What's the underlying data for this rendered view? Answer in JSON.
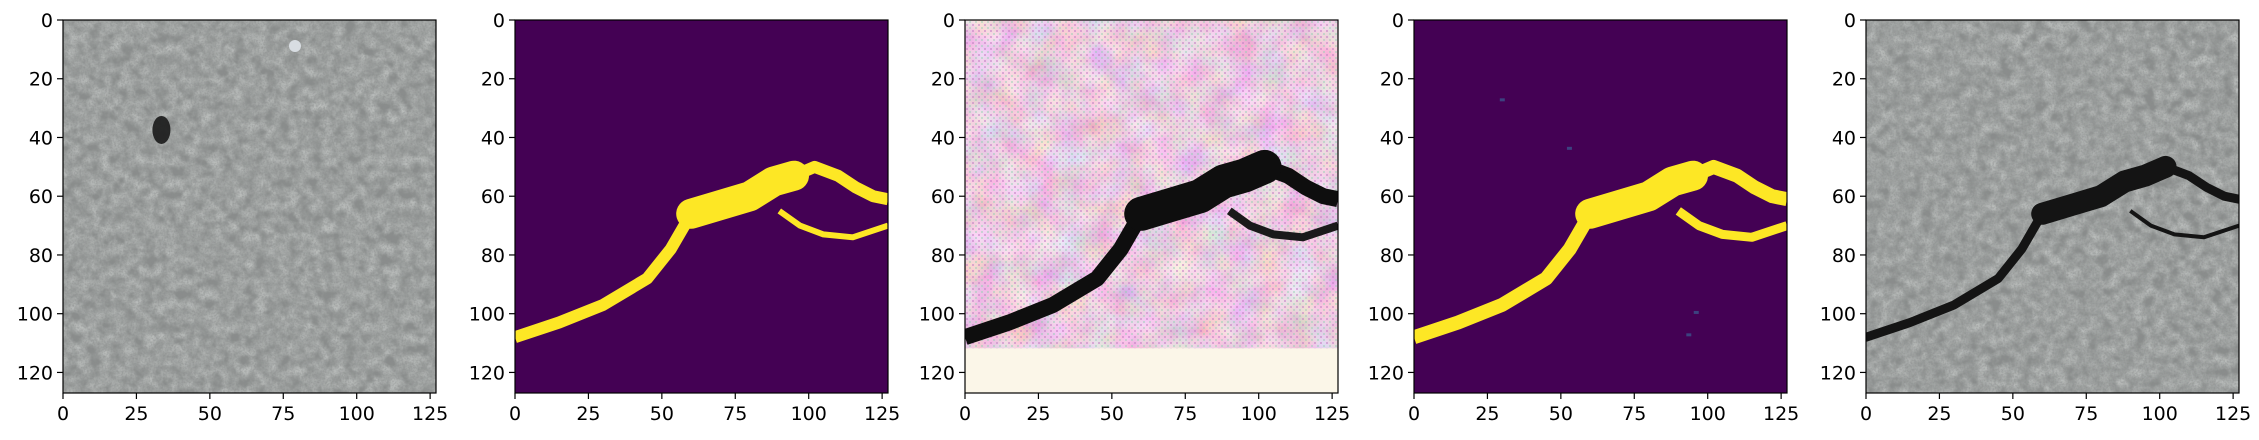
{
  "figure": {
    "panel_count": 5,
    "panels": [
      {
        "content": "concrete surface photo",
        "colormap": "rgb"
      },
      {
        "content": "binary crack mask",
        "colormap": "viridis"
      },
      {
        "content": "synthesized crack texture",
        "colormap": "rgb"
      },
      {
        "content": "predicted crack probability map",
        "colormap": "viridis"
      },
      {
        "content": "concrete surface photo with crack",
        "colormap": "rgb"
      }
    ]
  },
  "axes": {
    "xlim": [
      0,
      127
    ],
    "ylim": [
      127,
      0
    ],
    "x_ticks": [
      "0",
      "25",
      "50",
      "75",
      "100",
      "125"
    ],
    "y_ticks": [
      "0",
      "20",
      "40",
      "60",
      "80",
      "100",
      "120"
    ]
  },
  "crack_path": [
    [
      0,
      108
    ],
    [
      15,
      103
    ],
    [
      30,
      97
    ],
    [
      45,
      88
    ],
    [
      53,
      78
    ],
    [
      60,
      66
    ],
    [
      70,
      63
    ],
    [
      80,
      60
    ],
    [
      88,
      55
    ],
    [
      95,
      53
    ],
    [
      102,
      50
    ],
    [
      110,
      53
    ],
    [
      116,
      57
    ],
    [
      122,
      60
    ],
    [
      127,
      61
    ]
  ],
  "crack_branch": [
    [
      90,
      65
    ],
    [
      97,
      70
    ],
    [
      105,
      73
    ],
    [
      115,
      74
    ],
    [
      127,
      70
    ]
  ],
  "colors": {
    "viridis_background": "#440154",
    "viridis_foreground": "#fde725",
    "concrete_base": "#8a8d8c",
    "crack_dark": "#141414",
    "axis_color": "#000000"
  }
}
